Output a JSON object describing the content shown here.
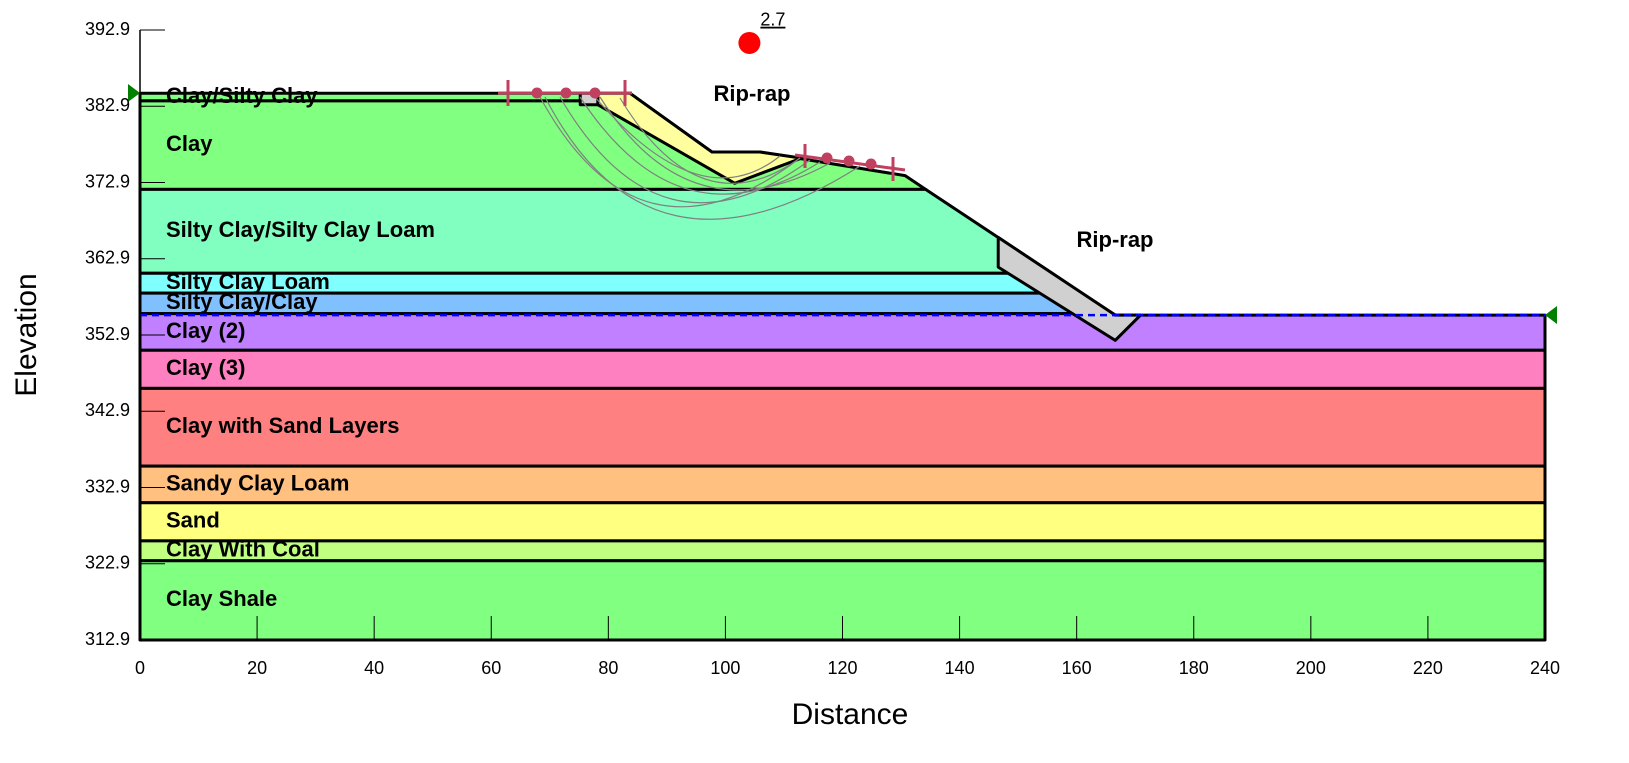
{
  "chart_data": {
    "type": "stratigraphy",
    "x_label": "Distance",
    "y_label": "Elevation",
    "xlim": [
      0,
      240
    ],
    "ylim": [
      312.9,
      392.9
    ],
    "xticks": [
      0,
      20,
      40,
      60,
      80,
      100,
      120,
      140,
      160,
      180,
      200,
      220,
      240
    ],
    "yticks": [
      312.9,
      322.9,
      332.9,
      342.9,
      352.9,
      362.9,
      372.9,
      382.9,
      392.9
    ],
    "layers": [
      {
        "name": "Clay/Silty Clay",
        "color": "#80ff80",
        "points": [
          [
            0,
            384.6
          ],
          [
            83.7,
            384.6
          ],
          [
            85.5,
            383.6
          ],
          [
            0,
            383.6
          ]
        ]
      },
      {
        "name": "Clay",
        "color": "#80ff80",
        "points": [
          [
            0,
            383.6
          ],
          [
            85.5,
            383.6
          ],
          [
            97.7,
            376.9
          ],
          [
            105.9,
            376.9
          ],
          [
            130.7,
            373.8
          ],
          [
            134.2,
            372.0
          ],
          [
            0,
            372.0
          ]
        ]
      },
      {
        "name": "Silty Clay/Silty Clay Loam",
        "color": "#80ffc0",
        "points": [
          [
            0,
            372.0
          ],
          [
            134.2,
            372.0
          ],
          [
            155.8,
            361.0
          ],
          [
            0,
            361.0
          ]
        ]
      },
      {
        "name": "Silty Clay Loam",
        "color": "#80ffff",
        "points": [
          [
            0,
            361.0
          ],
          [
            155.8,
            361.0
          ],
          [
            160.8,
            358.4
          ],
          [
            0,
            358.4
          ]
        ]
      },
      {
        "name": "Silty Clay/Clay",
        "color": "#80c0ff",
        "points": [
          [
            0,
            358.4
          ],
          [
            160.8,
            358.4
          ],
          [
            166.2,
            355.7
          ],
          [
            0,
            355.7
          ]
        ]
      },
      {
        "name": "Clay (2)",
        "color": "#c080ff",
        "points": [
          [
            0,
            355.7
          ],
          [
            166.2,
            355.7
          ],
          [
            166.6,
            355.5
          ],
          [
            240,
            355.5
          ],
          [
            240,
            350.9
          ],
          [
            0,
            350.9
          ]
        ]
      },
      {
        "name": "Clay (3)",
        "color": "#ff80c0",
        "points": [
          [
            0,
            350.9
          ],
          [
            240,
            350.9
          ],
          [
            240,
            345.9
          ],
          [
            0,
            345.9
          ]
        ]
      },
      {
        "name": "Clay with Sand Layers",
        "color": "#ff8080",
        "points": [
          [
            0,
            345.9
          ],
          [
            240,
            345.9
          ],
          [
            240,
            335.7
          ],
          [
            0,
            335.7
          ]
        ]
      },
      {
        "name": "Sandy Clay Loam",
        "color": "#ffc080",
        "points": [
          [
            0,
            335.7
          ],
          [
            240,
            335.7
          ],
          [
            240,
            330.9
          ],
          [
            0,
            330.9
          ]
        ]
      },
      {
        "name": "Sand",
        "color": "#ffff80",
        "points": [
          [
            0,
            330.9
          ],
          [
            240,
            330.9
          ],
          [
            240,
            325.9
          ],
          [
            0,
            325.9
          ]
        ]
      },
      {
        "name": "Clay With Coal",
        "color": "#c0ff80",
        "points": [
          [
            0,
            325.9
          ],
          [
            240,
            325.9
          ],
          [
            240,
            323.3
          ],
          [
            0,
            323.3
          ]
        ]
      },
      {
        "name": "Clay Shale",
        "color": "#80ff80",
        "points": [
          [
            0,
            323.3
          ],
          [
            240,
            323.3
          ],
          [
            240,
            312.9
          ],
          [
            0,
            312.9
          ]
        ]
      },
      {
        "name": null,
        "color": "#ffffa0",
        "points": [
          [
            78.2,
            384.6
          ],
          [
            83.7,
            384.6
          ],
          [
            97.7,
            376.9
          ],
          [
            105.9,
            376.9
          ],
          [
            113.0,
            376.1
          ],
          [
            101.6,
            372.8
          ],
          [
            78.2,
            383.1
          ]
        ]
      },
      {
        "name": null,
        "color": "#d0d0d0",
        "points": [
          [
            75.2,
            384.6
          ],
          [
            78.2,
            384.6
          ],
          [
            78.2,
            383.1
          ],
          [
            75.2,
            383.1
          ]
        ]
      },
      {
        "name": null,
        "color": "#d0d0d0",
        "points": [
          [
            146.6,
            365.7
          ],
          [
            146.6,
            361.8
          ],
          [
            166.6,
            352.2
          ],
          [
            170.9,
            355.5
          ],
          [
            166.6,
            355.5
          ]
        ]
      }
    ],
    "annotations": [
      "Rip-rap",
      "Rip-rap"
    ],
    "water_level": 355.5,
    "water_color": "#0000ff",
    "critical_center": {
      "x": 104.1,
      "y": 391.2,
      "factor_of_safety": 2.7,
      "color": "#ff0000"
    }
  }
}
